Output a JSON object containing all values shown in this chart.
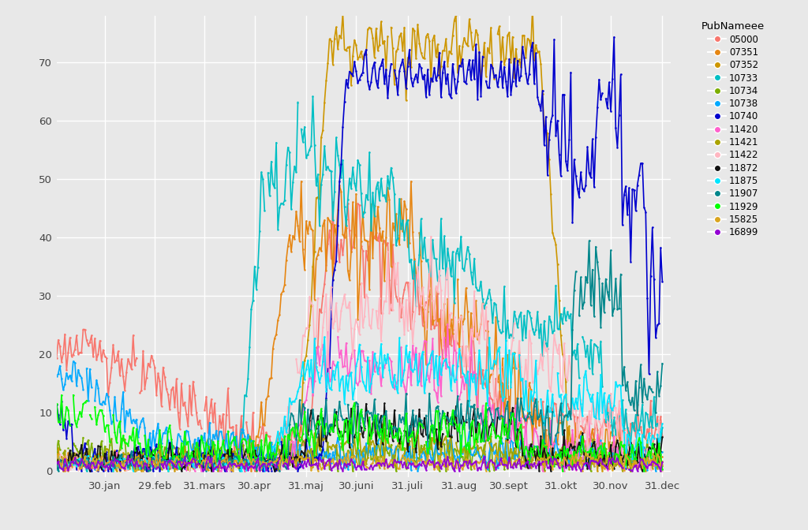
{
  "background_color": "#E8E8E8",
  "grid_color": "#FFFFFF",
  "legend_title": "PubNameee",
  "x_tick_labels": [
    "30.jan",
    "29.feb",
    "31.mars",
    "30.apr",
    "31.maj",
    "30.juni",
    "31.juli",
    "31.aug",
    "30.sept",
    "31.okt",
    "30.nov",
    "31.dec"
  ],
  "x_tick_positions": [
    30,
    60,
    90,
    120,
    151,
    181,
    212,
    243,
    273,
    304,
    334,
    365
  ],
  "ylim": [
    -1,
    78
  ],
  "xlim": [
    1,
    370
  ],
  "yticks": [
    0,
    10,
    20,
    30,
    40,
    50,
    60,
    70
  ],
  "series": {
    "05000": "#F8766D",
    "07351": "#E58700",
    "07352": "#C99800",
    "10733": "#00BA38",
    "10734": "#00C0AF",
    "10738": "#00BCD8",
    "10740": "#619CFF",
    "11420": "#DB72FB",
    "11421": "#FF61C3",
    "11422": "#D39200",
    "11872": "#93AA00",
    "11875": "#00B9E3",
    "11907": "#00BA38",
    "11929": "#F8766D",
    "15825": "#FF61C3",
    "16899": "#DB72FB"
  }
}
